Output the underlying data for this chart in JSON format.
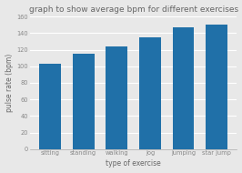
{
  "categories": [
    "sitting",
    "standing",
    "walking",
    "jog",
    "jumping",
    "star jump"
  ],
  "values": [
    103,
    115,
    124,
    135,
    147,
    150
  ],
  "bar_color": "#2070a8",
  "title": "graph to show average bpm for different exercises",
  "xlabel": "type of exercise",
  "ylabel": "pulse rate (bpm)",
  "ylim": [
    0,
    160
  ],
  "yticks": [
    0,
    20,
    40,
    60,
    80,
    100,
    120,
    140,
    160
  ],
  "title_fontsize": 6.5,
  "axis_label_fontsize": 5.5,
  "tick_fontsize": 4.8,
  "background_color": "#e8e8e8",
  "plot_bg_color": "#e8e8e8",
  "grid_color": "#ffffff"
}
